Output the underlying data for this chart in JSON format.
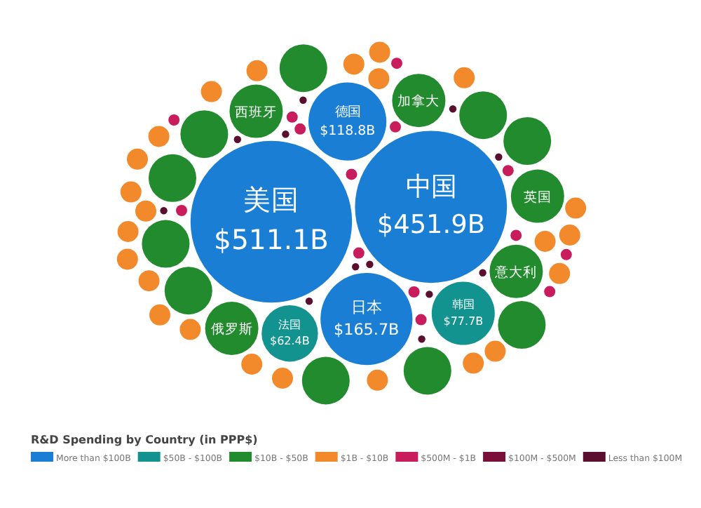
{
  "chart_data": {
    "type": "other",
    "legend_title": "R&D Spending by Country (in PPP$)",
    "legend": "bottom",
    "categories": [
      "美国",
      "中国",
      "日本",
      "德国",
      "韩国",
      "法国",
      "西班牙",
      "加拿大",
      "意大利",
      "俄罗斯",
      "英国",
      null,
      null,
      null,
      null,
      null,
      null,
      null,
      null,
      null,
      null,
      null,
      null,
      null,
      null,
      null,
      null,
      null,
      null,
      null,
      null,
      null,
      null,
      null,
      null,
      null,
      null,
      null,
      null,
      null,
      null,
      null,
      null,
      null,
      null,
      null,
      null,
      null,
      null,
      null,
      null,
      null,
      null,
      null,
      null,
      null,
      null,
      null,
      null,
      null,
      null,
      null,
      null,
      null,
      null,
      null,
      null,
      null,
      null,
      null,
      null
    ],
    "colors": [
      "#1a7fd4",
      "#1a7fd4",
      "#1a7fd4",
      "#1a7fd4",
      "#13938f",
      "#13938f",
      "#228b2e",
      "#228b2e",
      "#228b2e",
      "#228b2e",
      "#228b2e",
      "#228b2e",
      "#228b2e",
      "#228b2e",
      "#228b2e",
      "#228b2e",
      "#228b2e",
      "#228b2e",
      "#228b2e",
      "#228b2e",
      "#228b2e",
      "#f28a2c",
      "#f28a2c",
      "#f28a2c",
      "#f28a2c",
      "#f28a2c",
      "#f28a2c",
      "#f28a2c",
      "#f28a2c",
      "#f28a2c",
      "#f28a2c",
      "#f28a2c",
      "#f28a2c",
      "#f28a2c",
      "#f28a2c",
      "#f28a2c",
      "#f28a2c",
      "#f28a2c",
      "#f28a2c",
      "#f28a2c",
      "#f28a2c",
      "#f28a2c",
      "#f28a2c",
      "#f28a2c",
      "#f28a2c",
      "#c81c5c",
      "#c81c5c",
      "#c81c5c",
      "#c81c5c",
      "#c81c5c",
      "#c81c5c",
      "#c81c5c",
      "#c81c5c",
      "#c81c5c",
      "#c81c5c",
      "#c81c5c",
      "#c81c5c",
      "#c81c5c",
      "#c81c5c",
      "#5a0f2e",
      "#5a0f2e",
      "#5a0f2e",
      "#5a0f2e",
      "#5a0f2e",
      "#5a0f2e",
      "#5a0f2e",
      "#5a0f2e",
      "#5a0f2e",
      "#5a0f2e",
      "#5a0f2e",
      "#5a0f2e"
    ],
    "series": [
      {
        "name": "More than $100B",
        "color": "#1a7fd4",
        "value_labels": [
          "$511.1B",
          "$451.9B",
          "$165.7B",
          "$118.8B",
          null,
          null,
          null,
          null,
          null,
          null,
          null,
          null,
          null,
          null,
          null,
          null,
          null,
          null,
          null,
          null,
          null,
          null,
          null,
          null,
          null,
          null,
          null,
          null,
          null,
          null,
          null,
          null,
          null,
          null,
          null,
          null,
          null,
          null,
          null,
          null,
          null,
          null,
          null,
          null,
          null,
          null,
          null,
          null,
          null,
          null,
          null,
          null,
          null,
          null,
          null,
          null,
          null,
          null,
          null,
          null,
          null,
          null,
          null,
          null,
          null,
          null,
          null,
          null,
          null,
          null,
          null
        ],
        "values": [
          511.1,
          451.9,
          165.7,
          118.8,
          null,
          null,
          null,
          null,
          null,
          null,
          null,
          null,
          null,
          null,
          null,
          null,
          null,
          null,
          null,
          null,
          null,
          null,
          null,
          null,
          null,
          null,
          null,
          null,
          null,
          null,
          null,
          null,
          null,
          null,
          null,
          null,
          null,
          null,
          null,
          null,
          null,
          null,
          null,
          null,
          null,
          null,
          null,
          null,
          null,
          null,
          null,
          null,
          null,
          null,
          null,
          null,
          null,
          null,
          null,
          null,
          null,
          null,
          null,
          null,
          null,
          null,
          null,
          null,
          null,
          null,
          null
        ]
      },
      {
        "name": "$50B - $100B",
        "color": "#13938f",
        "value_labels": [
          null,
          null,
          null,
          null,
          "$77.7B",
          "$62.4B",
          null,
          null,
          null,
          null,
          null,
          null,
          null,
          null,
          null,
          null,
          null,
          null,
          null,
          null,
          null,
          null,
          null,
          null,
          null,
          null,
          null,
          null,
          null,
          null,
          null,
          null,
          null,
          null,
          null,
          null,
          null,
          null,
          null,
          null,
          null,
          null,
          null,
          null,
          null,
          null,
          null,
          null,
          null,
          null,
          null,
          null,
          null,
          null,
          null,
          null,
          null,
          null,
          null,
          null,
          null,
          null,
          null,
          null,
          null,
          null,
          null,
          null,
          null,
          null,
          null
        ],
        "values": [
          null,
          null,
          null,
          null,
          77.7,
          62.4,
          null,
          null,
          null,
          null,
          null,
          null,
          null,
          null,
          null,
          null,
          null,
          null,
          null,
          null,
          null,
          null,
          null,
          null,
          null,
          null,
          null,
          null,
          null,
          null,
          null,
          null,
          null,
          null,
          null,
          null,
          null,
          null,
          null,
          null,
          null,
          null,
          null,
          null,
          null,
          null,
          null,
          null,
          null,
          null,
          null,
          null,
          null,
          null,
          null,
          null,
          null,
          null,
          null,
          null,
          null,
          null,
          null,
          null,
          null,
          null,
          null,
          null,
          null,
          null,
          null
        ]
      },
      {
        "name": "$10B - $50B",
        "color": "#228b2e",
        "values": [
          null,
          null,
          null,
          null,
          null,
          null,
          null,
          null,
          null,
          null,
          null,
          null,
          null,
          null,
          null,
          null,
          null,
          null,
          null,
          null,
          null,
          null,
          null,
          null,
          null,
          null,
          null,
          null,
          null,
          null,
          null,
          null,
          null,
          null,
          null,
          null,
          null,
          null,
          null,
          null,
          null,
          null,
          null,
          null,
          null,
          null,
          null,
          null,
          null,
          null,
          null,
          null,
          null,
          null,
          null,
          null,
          null,
          null,
          null,
          null,
          null,
          null,
          null,
          null,
          null,
          null,
          null,
          null,
          null,
          null,
          null
        ]
      },
      {
        "name": "$1B - $10B",
        "color": "#f28a2c",
        "values": [
          null,
          null,
          null,
          null,
          null,
          null,
          null,
          null,
          null,
          null,
          null,
          null,
          null,
          null,
          null,
          null,
          null,
          null,
          null,
          null,
          null,
          null,
          null,
          null,
          null,
          null,
          null,
          null,
          null,
          null,
          null,
          null,
          null,
          null,
          null,
          null,
          null,
          null,
          null,
          null,
          null,
          null,
          null,
          null,
          null,
          null,
          null,
          null,
          null,
          null,
          null,
          null,
          null,
          null,
          null,
          null,
          null,
          null,
          null,
          null,
          null,
          null,
          null,
          null,
          null,
          null,
          null,
          null,
          null,
          null,
          null
        ]
      },
      {
        "name": "$500M - $1B",
        "color": "#c81c5c",
        "values": [
          null,
          null,
          null,
          null,
          null,
          null,
          null,
          null,
          null,
          null,
          null,
          null,
          null,
          null,
          null,
          null,
          null,
          null,
          null,
          null,
          null,
          null,
          null,
          null,
          null,
          null,
          null,
          null,
          null,
          null,
          null,
          null,
          null,
          null,
          null,
          null,
          null,
          null,
          null,
          null,
          null,
          null,
          null,
          null,
          null,
          null,
          null,
          null,
          null,
          null,
          null,
          null,
          null,
          null,
          null,
          null,
          null,
          null,
          null,
          null,
          null,
          null,
          null,
          null,
          null,
          null,
          null,
          null,
          null,
          null,
          null
        ]
      },
      {
        "name": "$100M - $500M",
        "color": "#7a0f3a",
        "values": [
          null,
          null,
          null,
          null,
          null,
          null,
          null,
          null,
          null,
          null,
          null,
          null,
          null,
          null,
          null,
          null,
          null,
          null,
          null,
          null,
          null,
          null,
          null,
          null,
          null,
          null,
          null,
          null,
          null,
          null,
          null,
          null,
          null,
          null,
          null,
          null,
          null,
          null,
          null,
          null,
          null,
          null,
          null,
          null,
          null,
          null,
          null,
          null,
          null,
          null,
          null,
          null,
          null,
          null,
          null,
          null,
          null,
          null,
          null,
          null,
          null,
          null,
          null,
          null,
          null,
          null,
          null,
          null,
          null,
          null,
          null
        ]
      },
      {
        "name": "Less than $100M",
        "color": "#5a0f2e",
        "values": [
          null,
          null,
          null,
          null,
          null,
          null,
          null,
          null,
          null,
          null,
          null,
          null,
          null,
          null,
          null,
          null,
          null,
          null,
          null,
          null,
          null,
          null,
          null,
          null,
          null,
          null,
          null,
          null,
          null,
          null,
          null,
          null,
          null,
          null,
          null,
          null,
          null,
          null,
          null,
          null,
          null,
          null,
          null,
          null,
          null,
          null,
          null,
          null,
          null,
          null,
          null,
          null,
          null,
          null,
          null,
          null,
          null,
          null,
          null,
          null,
          null,
          null,
          null,
          null,
          null,
          null,
          null,
          null,
          null,
          null,
          null
        ]
      }
    ]
  }
}
